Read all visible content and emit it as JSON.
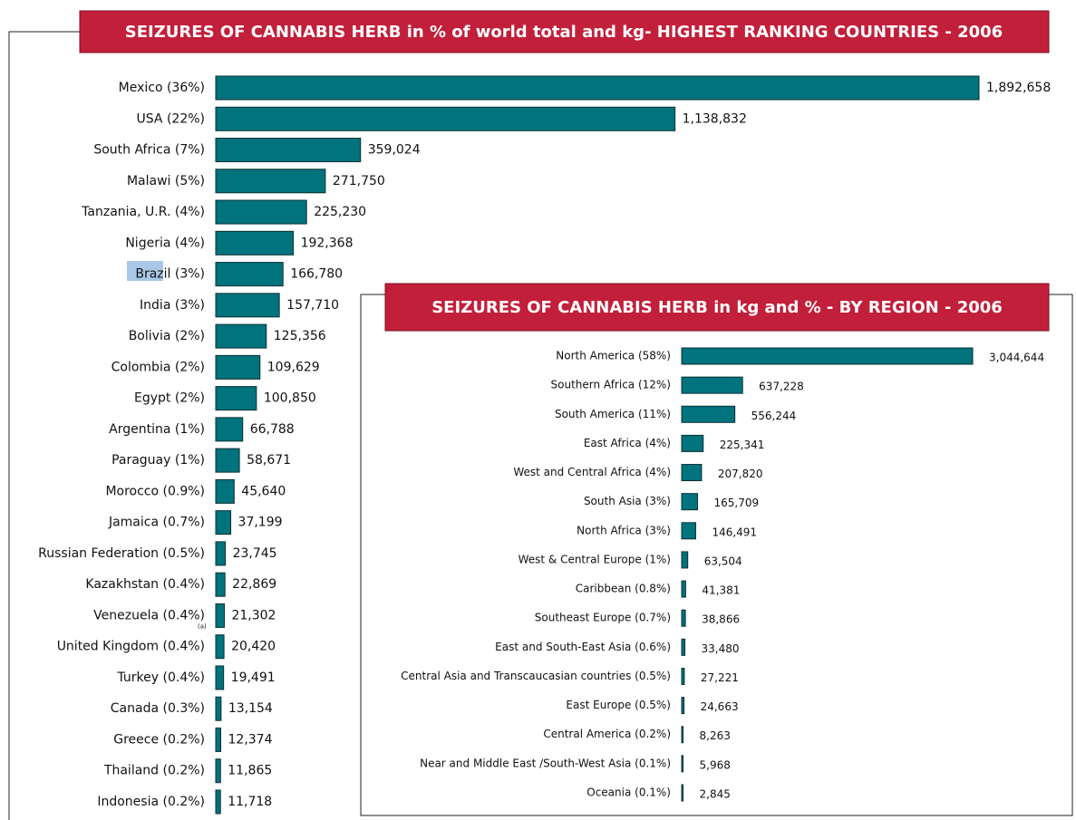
{
  "chart_data": [
    {
      "type": "bar",
      "orientation": "horizontal",
      "color": "#00737c",
      "title": "SEIZURES OF CANNABIS HERB in % of world total and kg- HIGHEST RANKING COUNTRIES - 2006",
      "annotation": "(a)",
      "categories": [
        "Mexico (36%)",
        "USA (22%)",
        "South Africa (7%)",
        "Malawi (5%)",
        "Tanzania, U.R. (4%)",
        "Nigeria (4%)",
        "Brazil (3%)",
        "India (3%)",
        "Bolivia (2%)",
        "Colombia (2%)",
        "Egypt (2%)",
        "Argentina (1%)",
        "Paraguay (1%)",
        "Morocco (0.9%)",
        "Jamaica (0.7%)",
        "Russian Federation (0.5%)",
        "Kazakhstan (0.4%)",
        "Venezuela (0.4%)",
        "United Kingdom (0.4%)",
        "Turkey (0.4%)",
        "Canada (0.3%)",
        "Greece (0.2%)",
        "Thailand (0.2%)",
        "Indonesia (0.2%)"
      ],
      "values": [
        1892658,
        1138832,
        359024,
        271750,
        225230,
        192368,
        166780,
        157710,
        125356,
        109629,
        100850,
        66788,
        58671,
        45640,
        37199,
        23745,
        22869,
        21302,
        20420,
        19491,
        13154,
        12374,
        11865,
        11718
      ],
      "value_labels": [
        "1,892,658",
        "1,138,832",
        "359,024",
        "271,750",
        "225,230",
        "192,368",
        "166,780",
        "157,710",
        "125,356",
        "109,629",
        "100,850",
        "66,788",
        "58,671",
        "45,640",
        "37,199",
        "23,745",
        "22,869",
        "21,302",
        "20,420",
        "19,491",
        "13,154",
        "12,374",
        "11,865",
        "11,718"
      ]
    },
    {
      "type": "bar",
      "orientation": "horizontal",
      "color": "#00737c",
      "title": "SEIZURES OF CANNABIS HERB in kg and % - BY REGION - 2006",
      "categories": [
        "North America (58%)",
        "Southern Africa (12%)",
        "South America (11%)",
        "East Africa (4%)",
        "West and Central Africa (4%)",
        "South Asia (3%)",
        "North Africa (3%)",
        "West & Central Europe (1%)",
        "Caribbean (0.8%)",
        "Southeast Europe (0.7%)",
        "East and South-East Asia (0.6%)",
        "Central Asia  and Transcaucasian countries (0.5%)",
        "East Europe (0.5%)",
        "Central America (0.2%)",
        "Near and Middle East /South-West Asia (0.1%)",
        "Oceania (0.1%)"
      ],
      "values": [
        3044644,
        637228,
        556244,
        225341,
        207820,
        165709,
        146491,
        63504,
        41381,
        38866,
        33480,
        27221,
        24663,
        8263,
        5968,
        2845
      ],
      "value_labels": [
        "3,044,644",
        "637,228",
        "556,244",
        "225,341",
        "207,820",
        "165,709",
        "146,491",
        "63,504",
        "41,381",
        "38,866",
        "33,480",
        "27,221",
        "24,663",
        "8,263",
        "5,968",
        "2,845"
      ]
    }
  ]
}
